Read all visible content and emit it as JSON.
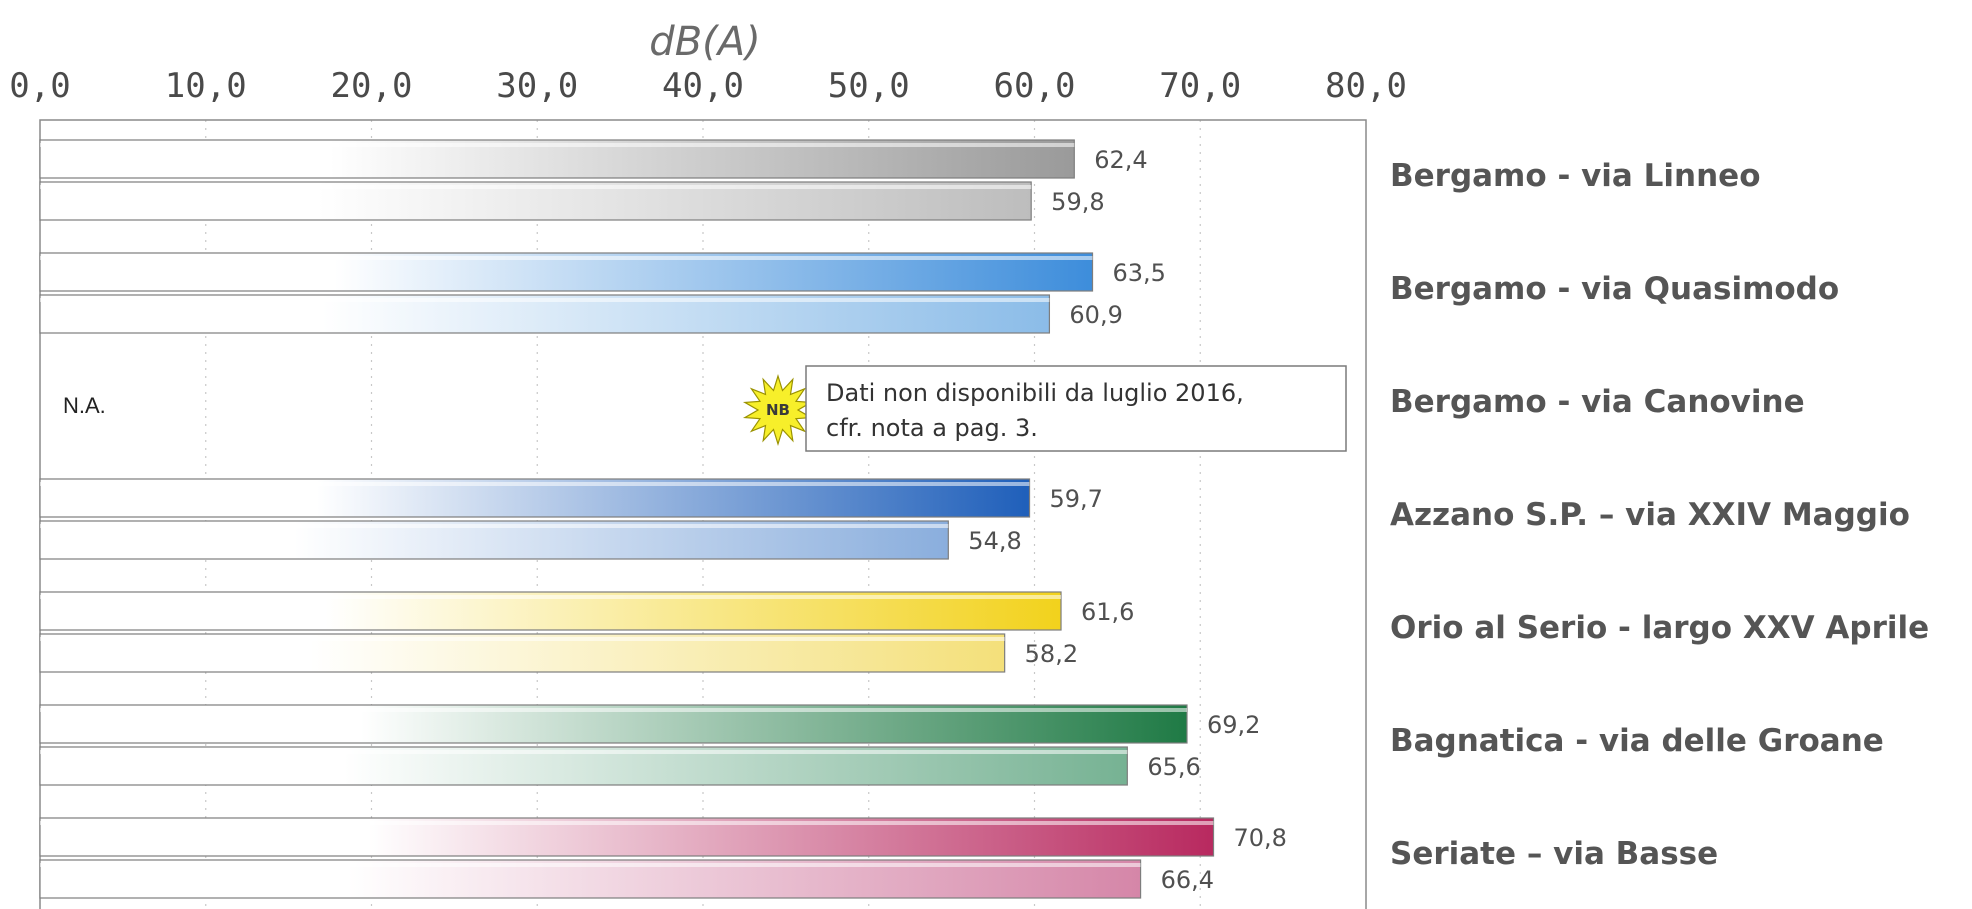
{
  "chart_data": {
    "type": "bar",
    "orientation": "horizontal",
    "unit_label": "dB(A)",
    "x_ticks": [
      "0,0",
      "10,0",
      "20,0",
      "30,0",
      "40,0",
      "50,0",
      "60,0",
      "70,0",
      "80,0"
    ],
    "xlim": [
      0,
      80
    ],
    "grid": true,
    "categories": [
      "Bergamo - via Linneo",
      "Bergamo - via Quasimodo",
      "Bergamo - via Canovine",
      "Azzano S.P. – via XXIV Maggio",
      "Orio al Serio - largo XXV Aprile",
      "Bagnatica - via delle Groane",
      "Seriate – via Basse"
    ],
    "series": [
      {
        "values": [
          62.4,
          63.5,
          null,
          59.7,
          61.6,
          69.2,
          70.8
        ],
        "labels": [
          "62,4",
          "63,5",
          "",
          "59,7",
          "61,6",
          "69,2",
          "70,8"
        ]
      },
      {
        "values": [
          59.8,
          60.9,
          null,
          54.8,
          58.2,
          65.6,
          66.4
        ],
        "labels": [
          "59,8",
          "60,9",
          "",
          "54,8",
          "58,2",
          "65,6",
          "66,4"
        ]
      }
    ],
    "colors": [
      [
        "#9a9a9a",
        "#bdbdbd"
      ],
      [
        "#3d8ddb",
        "#8bbce8"
      ],
      [
        "#cccccc",
        "#cccccc"
      ],
      [
        "#1f5fba",
        "#8aaedd"
      ],
      [
        "#f2d21c",
        "#f4e07a"
      ],
      [
        "#1f7a45",
        "#76b293"
      ],
      [
        "#b8295f",
        "#d586a8"
      ]
    ],
    "missing_label": "N.A.",
    "annotation": {
      "badge": "NB",
      "lines": [
        "Dati non disponibili da luglio 2016,",
        "cfr. nota a pag. 3."
      ]
    }
  }
}
